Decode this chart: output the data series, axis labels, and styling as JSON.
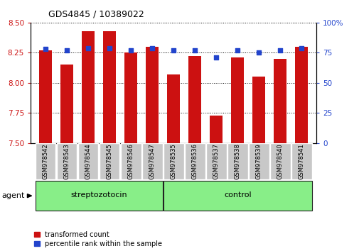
{
  "title": "GDS4845 / 10389022",
  "samples": [
    "GSM978542",
    "GSM978543",
    "GSM978544",
    "GSM978545",
    "GSM978546",
    "GSM978547",
    "GSM978535",
    "GSM978536",
    "GSM978537",
    "GSM978538",
    "GSM978539",
    "GSM978540",
    "GSM978541"
  ],
  "red_values": [
    8.27,
    8.15,
    8.43,
    8.43,
    8.25,
    8.3,
    8.07,
    8.22,
    7.73,
    8.21,
    8.05,
    8.2,
    8.3
  ],
  "blue_values": [
    78,
    77,
    79,
    79,
    77,
    79,
    77,
    77,
    71,
    77,
    75,
    77,
    79
  ],
  "ylim_left": [
    7.5,
    8.5
  ],
  "ylim_right": [
    0,
    100
  ],
  "yticks_left": [
    7.5,
    7.75,
    8.0,
    8.25,
    8.5
  ],
  "yticks_right": [
    0,
    25,
    50,
    75,
    100
  ],
  "red_color": "#cc1111",
  "blue_color": "#2244cc",
  "bar_bottom": 7.5,
  "legend_red": "transformed count",
  "legend_blue": "percentile rank within the sample",
  "background_color": "#ffffff",
  "bar_width": 0.6,
  "tick_label_bg": "#c8c8c8",
  "group_divider": 6,
  "streptozotocin_label": "streptozotocin",
  "control_label": "control",
  "agent_label": "agent",
  "group_color": "#88ee88"
}
